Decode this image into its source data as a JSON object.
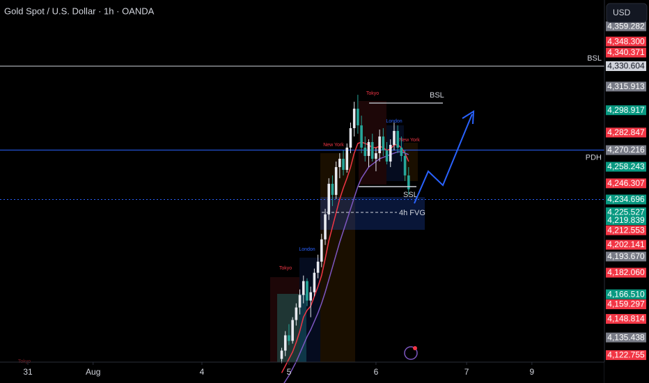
{
  "header": {
    "title": "Gold Spot / U.S. Dollar · 1h · OANDA",
    "currency": "USD"
  },
  "sessions": [
    "Tokyo",
    "London",
    "New York",
    "Tokyo",
    "London",
    "New York",
    "Tokyo"
  ],
  "annotations": [
    "BSL",
    "SSL",
    "4h FVG"
  ],
  "chart_data": {
    "type": "candlestick",
    "x": [
      70,
      71,
      72,
      73,
      74,
      75,
      76,
      77,
      78,
      79,
      80,
      81,
      82,
      83,
      84,
      85,
      86,
      87,
      88,
      89,
      90,
      91,
      92,
      93,
      94,
      95,
      96,
      97,
      98,
      99,
      100,
      101,
      102,
      103,
      104,
      105
    ],
    "open": [
      4120,
      4126,
      4137,
      4133,
      4148,
      4157,
      4166,
      4176,
      4162,
      4168,
      4182,
      4190,
      4206,
      4224,
      4246,
      4238,
      4258,
      4264,
      4256,
      4272,
      4286,
      4300,
      4288,
      4272,
      4266,
      4276,
      4264,
      4268,
      4280,
      4270,
      4262,
      4274,
      4284,
      4272,
      4266,
      4252
    ],
    "high": [
      4128,
      4140,
      4145,
      4150,
      4160,
      4170,
      4180,
      4178,
      4172,
      4185,
      4195,
      4210,
      4228,
      4250,
      4252,
      4262,
      4268,
      4270,
      4275,
      4290,
      4305,
      4310,
      4295,
      4280,
      4278,
      4282,
      4272,
      4285,
      4286,
      4276,
      4278,
      4290,
      4288,
      4280,
      4270,
      4258
    ],
    "low": [
      4117,
      4122,
      4130,
      4131,
      4144,
      4152,
      4160,
      4158,
      4150,
      4165,
      4178,
      4186,
      4202,
      4220,
      4230,
      4235,
      4250,
      4252,
      4254,
      4268,
      4280,
      4282,
      4268,
      4262,
      4258,
      4262,
      4255,
      4262,
      4266,
      4260,
      4258,
      4270,
      4268,
      4262,
      4248,
      4238
    ],
    "close": [
      4126,
      4137,
      4133,
      4148,
      4157,
      4166,
      4176,
      4162,
      4168,
      4182,
      4190,
      4206,
      4224,
      4246,
      4238,
      4258,
      4264,
      4256,
      4272,
      4286,
      4300,
      4288,
      4272,
      4266,
      4276,
      4264,
      4268,
      4280,
      4270,
      4262,
      4274,
      4284,
      4272,
      4266,
      4252,
      4242
    ],
    "up_color": "#e8eaf0",
    "down_color": "#26a69a",
    "overlays": [
      {
        "color": "#f23645",
        "values": [
          4110,
          4115,
          4120,
          4125,
          4132,
          4140,
          4150,
          4155,
          4158,
          4165,
          4172,
          4180,
          4192,
          4205,
          4215,
          4225,
          4235,
          4243,
          4250,
          4258,
          4268,
          4275,
          4276,
          4275,
          4274,
          4272,
          4272,
          4273,
          4272,
          4270,
          4271,
          4274,
          4274,
          4272,
          4268,
          4262
        ]
      },
      {
        "color": "#7e57c2",
        "values": [
          4100,
          4104,
          4108,
          4113,
          4118,
          4124,
          4130,
          4136,
          4141,
          4147,
          4153,
          4160,
          4168,
          4177,
          4186,
          4195,
          4204,
          4212,
          4220,
          4228,
          4236,
          4244,
          4250,
          4254,
          4258,
          4260,
          4262,
          4264,
          4265,
          4266,
          4267,
          4268,
          4269,
          4269,
          4268,
          4267
        ]
      }
    ],
    "levels": [
      {
        "label": "BSL",
        "value": 4330.604,
        "color": "#d1d4dc",
        "style": "solid"
      },
      {
        "label": "PDH",
        "value": 4270.216,
        "color": "#2962ff",
        "style": "solid"
      },
      {
        "value": 4234.696,
        "color": "#2962ff",
        "style": "dotted"
      }
    ],
    "xlim": [
      -7.68,
      159
    ],
    "xticks": [
      {
        "value": 0,
        "label": "31"
      },
      {
        "value": 18,
        "label": "Aug"
      },
      {
        "value": 48,
        "label": "4"
      },
      {
        "value": 72,
        "label": "5"
      },
      {
        "value": 96,
        "label": "6"
      },
      {
        "value": 121,
        "label": "7"
      },
      {
        "value": 139,
        "label": "9"
      }
    ],
    "ylim": [
      4117.72,
      4378.19
    ],
    "yticks": [
      {
        "value": 4359.282,
        "label": "4,359.282",
        "color": "#787b86"
      },
      {
        "value": 4348.3,
        "label": "4,348.300",
        "color": "#f23645"
      },
      {
        "value": 4340.371,
        "label": "4,340.371",
        "color": "#f23645"
      },
      {
        "value": 4330.604,
        "label": "4,330.604",
        "color": "#d1d4dc"
      },
      {
        "value": 4315.913,
        "label": "4,315.913",
        "color": "#787b86"
      },
      {
        "value": 4298.917,
        "label": "4,298.917",
        "color": "#089981"
      },
      {
        "value": 4282.847,
        "label": "4,282.847",
        "color": "#f23645"
      },
      {
        "value": 4270.216,
        "label": "4,270.216",
        "color": "#787b86"
      },
      {
        "value": 4258.243,
        "label": "4,258.243",
        "color": "#089981"
      },
      {
        "value": 4246.307,
        "label": "4,246.307",
        "color": "#f23645"
      },
      {
        "value": 4234.696,
        "label": "4,234.696",
        "color": "#089981"
      },
      {
        "value": 4225.527,
        "label": "4,225.527",
        "color": "#089981"
      },
      {
        "value": 4219.839,
        "label": "4,219.839",
        "color": "#089981"
      },
      {
        "value": 4212.553,
        "label": "4,212.553",
        "color": "#f23645"
      },
      {
        "value": 4202.141,
        "label": "4,202.141",
        "color": "#f23645"
      },
      {
        "value": 4193.67,
        "label": "4,193.670",
        "color": "#787b86"
      },
      {
        "value": 4182.06,
        "label": "4,182.060",
        "color": "#f23645"
      },
      {
        "value": 4166.51,
        "label": "4,166.510",
        "color": "#089981"
      },
      {
        "value": 4159.297,
        "label": "4,159.297",
        "color": "#f23645"
      },
      {
        "value": 4148.814,
        "label": "4,148.814",
        "color": "#f23645"
      },
      {
        "value": 4135.438,
        "label": "4,135.438",
        "color": "#787b86"
      },
      {
        "value": 4122.755,
        "label": "4,122.755",
        "color": "#f23645"
      }
    ]
  }
}
